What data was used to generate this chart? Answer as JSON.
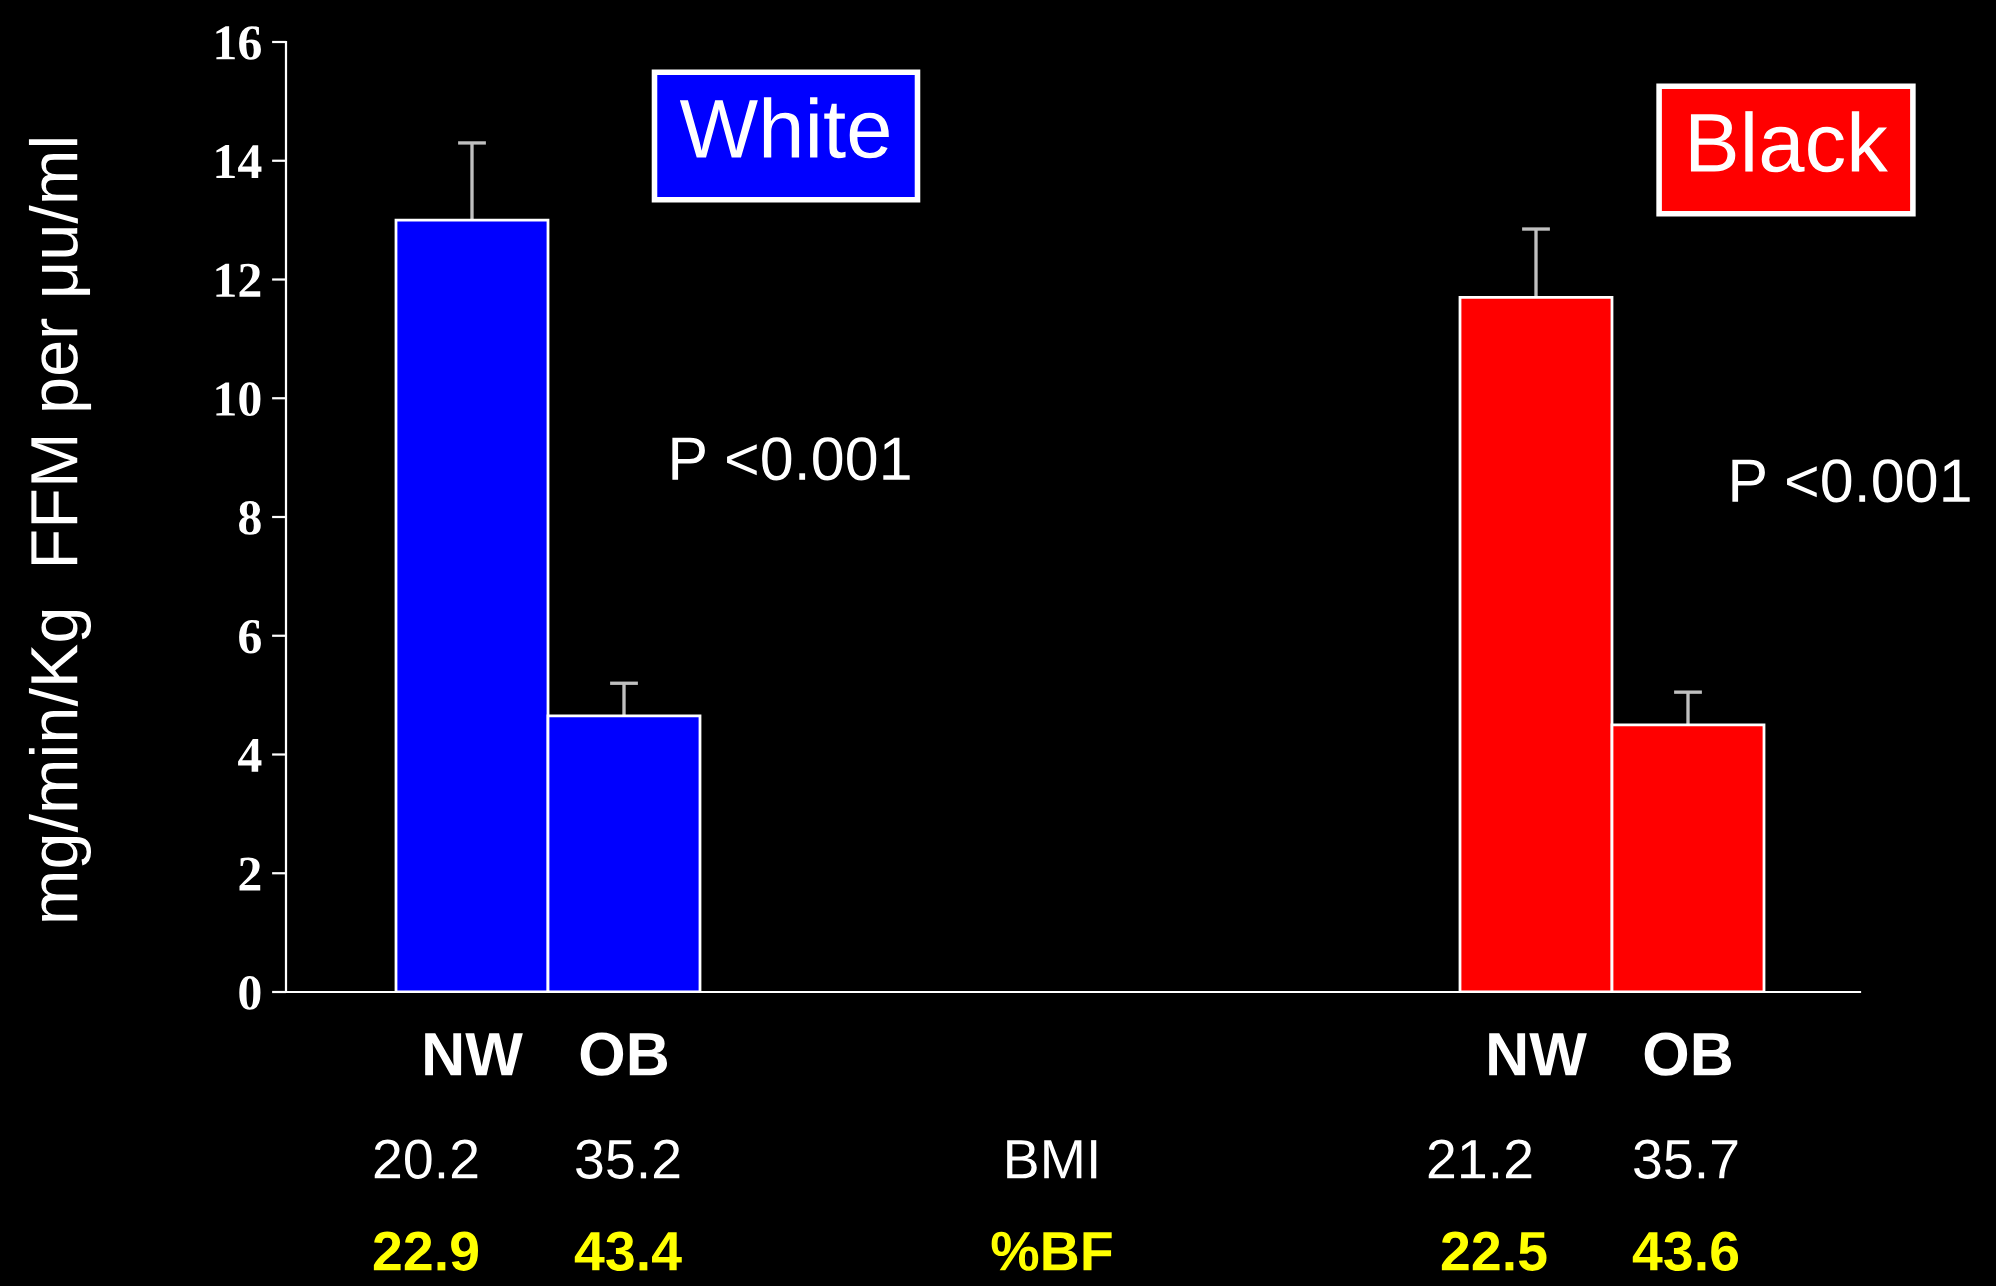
{
  "chart_data": {
    "type": "bar",
    "ylabel": "mg/min/Kg  FFM per μu/ml",
    "categories": [
      "NW",
      "OB",
      null,
      null,
      null,
      null,
      null,
      "NW",
      "OB"
    ],
    "values": [
      13.0,
      4.65,
      null,
      null,
      null,
      null,
      null,
      11.7,
      4.5
    ],
    "errors": [
      1.3,
      0.55,
      null,
      null,
      null,
      null,
      null,
      1.15,
      0.55
    ],
    "colors": [
      "#0000ff",
      "#0000ff",
      "#000000",
      "#000000",
      "#000000",
      "#000000",
      "#000000",
      "#ff0000",
      "#ff0000"
    ],
    "ylim": [
      0,
      16
    ],
    "yticks": [
      0,
      2,
      4,
      6,
      8,
      10,
      12,
      14,
      16
    ],
    "grid": false,
    "legend": false,
    "annotations": [
      "White",
      "Black",
      "P <0.001",
      "P <0.001",
      "20.2",
      "35.2",
      "BMI",
      "21.2",
      "35.7",
      "22.9",
      "43.4",
      "%BF",
      "22.5",
      "43.6"
    ]
  }
}
